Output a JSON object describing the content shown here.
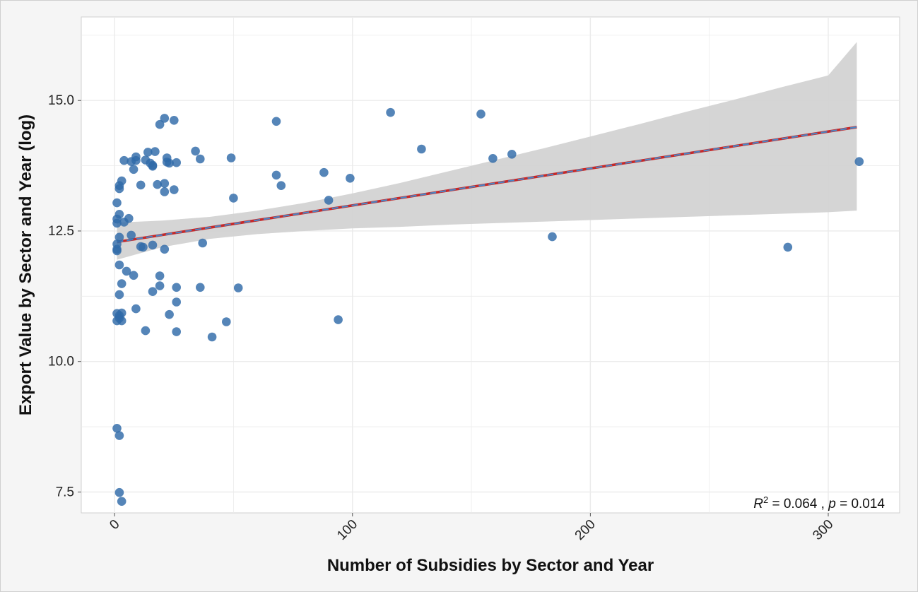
{
  "chart_data": {
    "type": "scatter",
    "xlabel": "Number of Subsidies by Sector and Year",
    "ylabel": "Export Value by Sector and Year (log)",
    "xlim": [
      -14,
      330
    ],
    "ylim": [
      7.1,
      16.6
    ],
    "x_ticks": [
      0,
      100,
      200,
      300
    ],
    "y_ticks": [
      7.5,
      10.0,
      12.5,
      15.0
    ],
    "x_tick_labels": [
      "0",
      "100",
      "200",
      "300"
    ],
    "y_tick_labels": [
      "7.5",
      "10.0",
      "12.5",
      "15.0"
    ],
    "grid": true,
    "colors": {
      "points": "#2f6aa8",
      "trend_line_outer": "#c62828",
      "trend_line_inner": "#4a86c5",
      "confidence_band": "#d3d3d3",
      "panel_background": "#ffffff",
      "grid": "#ebebeb"
    },
    "trend_line": {
      "x": [
        1,
        312
      ],
      "y": [
        12.29,
        14.49
      ]
    },
    "confidence_band": {
      "x": [
        1,
        20,
        40,
        60,
        80,
        100,
        120,
        140,
        160,
        180,
        200,
        220,
        240,
        260,
        280,
        300,
        312
      ],
      "lower": [
        11.95,
        12.19,
        12.35,
        12.44,
        12.5,
        12.55,
        12.58,
        12.62,
        12.65,
        12.68,
        12.71,
        12.74,
        12.77,
        12.8,
        12.83,
        12.86,
        12.89
      ],
      "upper": [
        12.66,
        12.7,
        12.77,
        12.89,
        13.04,
        13.22,
        13.42,
        13.64,
        13.86,
        14.08,
        14.31,
        14.54,
        14.78,
        15.01,
        15.25,
        15.48,
        16.12
      ]
    },
    "series": [
      {
        "points": [
          [
            1,
            12.73
          ],
          [
            1,
            12.65
          ],
          [
            1,
            12.25
          ],
          [
            1,
            12.15
          ],
          [
            1,
            12.12
          ],
          [
            1,
            13.04
          ],
          [
            1,
            10.92
          ],
          [
            1,
            10.78
          ],
          [
            1,
            8.72
          ],
          [
            2,
            13.31
          ],
          [
            2,
            13.37
          ],
          [
            2,
            12.82
          ],
          [
            2,
            12.38
          ],
          [
            2,
            11.85
          ],
          [
            2,
            11.28
          ],
          [
            2,
            10.88
          ],
          [
            2,
            10.83
          ],
          [
            2,
            8.58
          ],
          [
            2,
            7.49
          ],
          [
            3,
            13.46
          ],
          [
            3,
            11.49
          ],
          [
            3,
            10.93
          ],
          [
            3,
            10.78
          ],
          [
            3,
            7.32
          ],
          [
            4,
            13.85
          ],
          [
            4,
            12.67
          ],
          [
            5,
            11.73
          ],
          [
            6,
            12.74
          ],
          [
            7,
            13.83
          ],
          [
            7,
            12.42
          ],
          [
            8,
            13.68
          ],
          [
            8,
            11.65
          ],
          [
            9,
            13.92
          ],
          [
            9,
            13.85
          ],
          [
            9,
            11.01
          ],
          [
            11,
            13.38
          ],
          [
            11,
            12.2
          ],
          [
            12,
            12.19
          ],
          [
            13,
            13.86
          ],
          [
            13,
            10.59
          ],
          [
            14,
            14.01
          ],
          [
            15,
            13.8
          ],
          [
            16,
            13.76
          ],
          [
            16,
            13.74
          ],
          [
            16,
            12.23
          ],
          [
            16,
            11.34
          ],
          [
            17,
            14.02
          ],
          [
            18,
            13.39
          ],
          [
            19,
            14.54
          ],
          [
            19,
            11.64
          ],
          [
            19,
            11.45
          ],
          [
            21,
            14.66
          ],
          [
            21,
            13.41
          ],
          [
            21,
            13.25
          ],
          [
            21,
            12.15
          ],
          [
            22,
            13.9
          ],
          [
            22,
            13.82
          ],
          [
            23,
            13.8
          ],
          [
            23,
            10.9
          ],
          [
            25,
            14.62
          ],
          [
            25,
            13.29
          ],
          [
            26,
            13.81
          ],
          [
            26,
            11.42
          ],
          [
            26,
            11.14
          ],
          [
            26,
            10.57
          ],
          [
            34,
            14.03
          ],
          [
            36,
            13.88
          ],
          [
            36,
            11.42
          ],
          [
            37,
            12.27
          ],
          [
            41,
            10.47
          ],
          [
            47,
            10.76
          ],
          [
            49,
            13.9
          ],
          [
            50,
            13.13
          ],
          [
            52,
            11.41
          ],
          [
            68,
            14.6
          ],
          [
            68,
            13.57
          ],
          [
            70,
            13.37
          ],
          [
            88,
            13.62
          ],
          [
            90,
            13.09
          ],
          [
            94,
            10.8
          ],
          [
            99,
            13.51
          ],
          [
            116,
            14.77
          ],
          [
            129,
            14.07
          ],
          [
            154,
            14.74
          ],
          [
            159,
            13.89
          ],
          [
            167,
            13.97
          ],
          [
            184,
            12.39
          ],
          [
            283,
            12.19
          ],
          [
            313,
            13.83
          ]
        ]
      }
    ],
    "annotation": {
      "r_symbol": "R",
      "r_exponent": "2",
      "r_value": " = 0.064 , ",
      "p_symbol": "p",
      "p_value": " = 0.014"
    }
  }
}
